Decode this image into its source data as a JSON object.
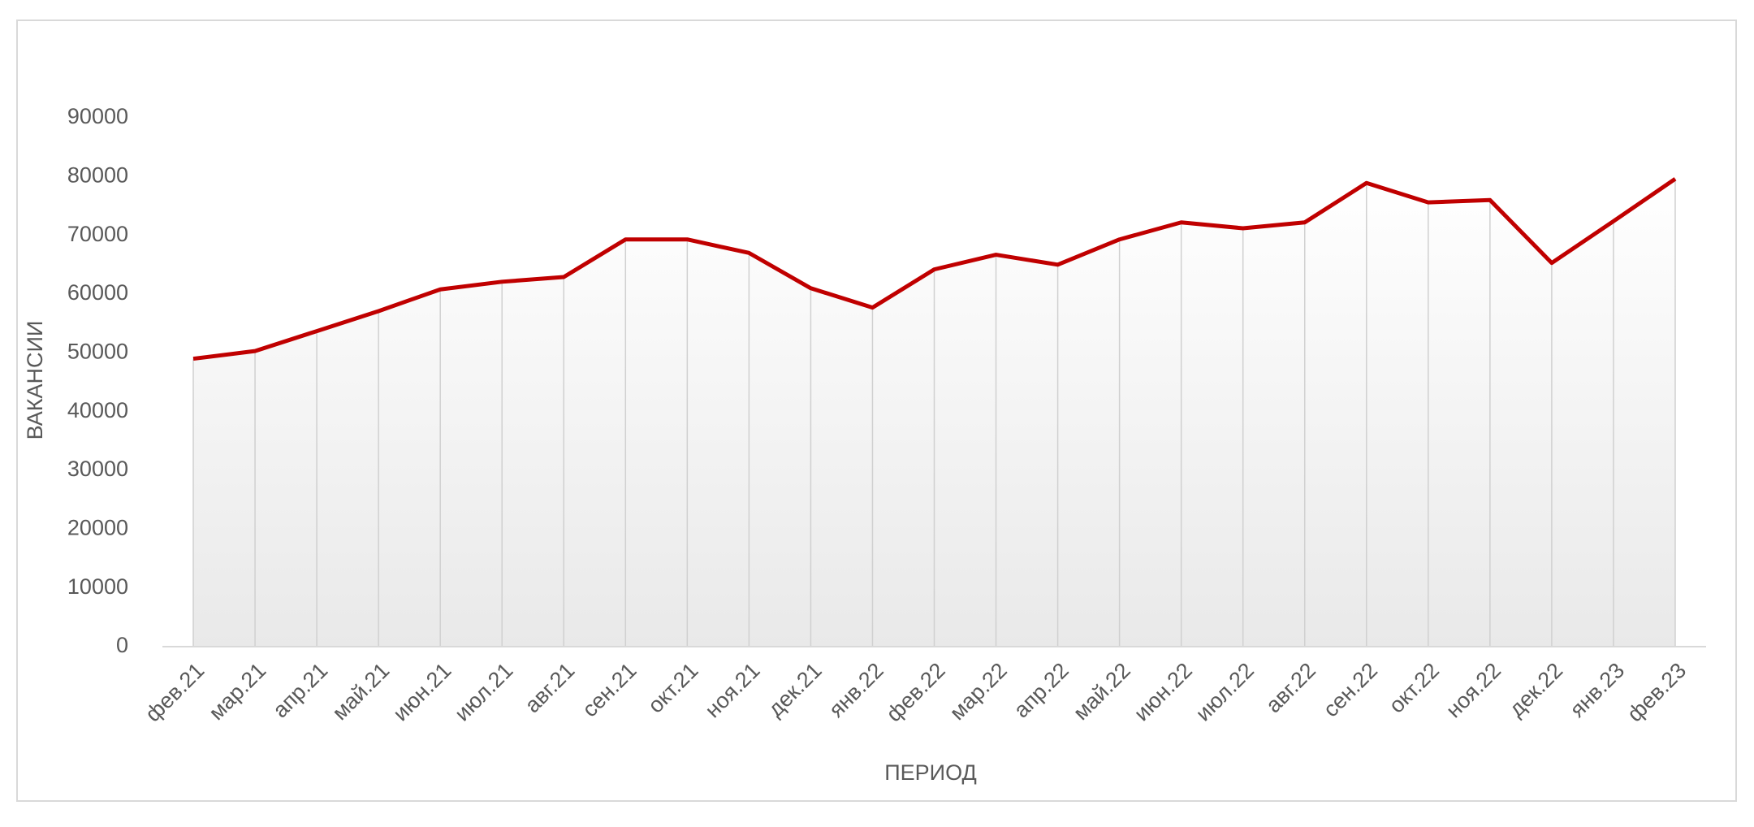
{
  "chart_data": {
    "type": "line",
    "x_label": "ПЕРИОД",
    "y_label": "ВАКАНСИИ",
    "categories": [
      "фев.21",
      "мар.21",
      "апр.21",
      "май.21",
      "июн.21",
      "июл.21",
      "авг.21",
      "сен.21",
      "окт.21",
      "ноя.21",
      "дек.21",
      "янв.22",
      "фев.22",
      "мар.22",
      "апр.22",
      "май.22",
      "июн.22",
      "июл.22",
      "авг.22",
      "сен.22",
      "окт.22",
      "ноя.22",
      "дек.22",
      "янв.23",
      "фев.23"
    ],
    "values": [
      49000,
      50300,
      53700,
      57100,
      60800,
      62100,
      62900,
      69300,
      69300,
      67000,
      61000,
      57700,
      64200,
      66700,
      65000,
      69300,
      72200,
      71200,
      72200,
      78900,
      75600,
      76000,
      65300,
      72400,
      79600
    ],
    "color": "#c00000",
    "ylim": [
      0,
      90000
    ],
    "yticks": [
      0,
      10000,
      20000,
      30000,
      40000,
      50000,
      60000,
      70000,
      80000,
      90000
    ],
    "drop_lines": true,
    "area_fill": true
  }
}
